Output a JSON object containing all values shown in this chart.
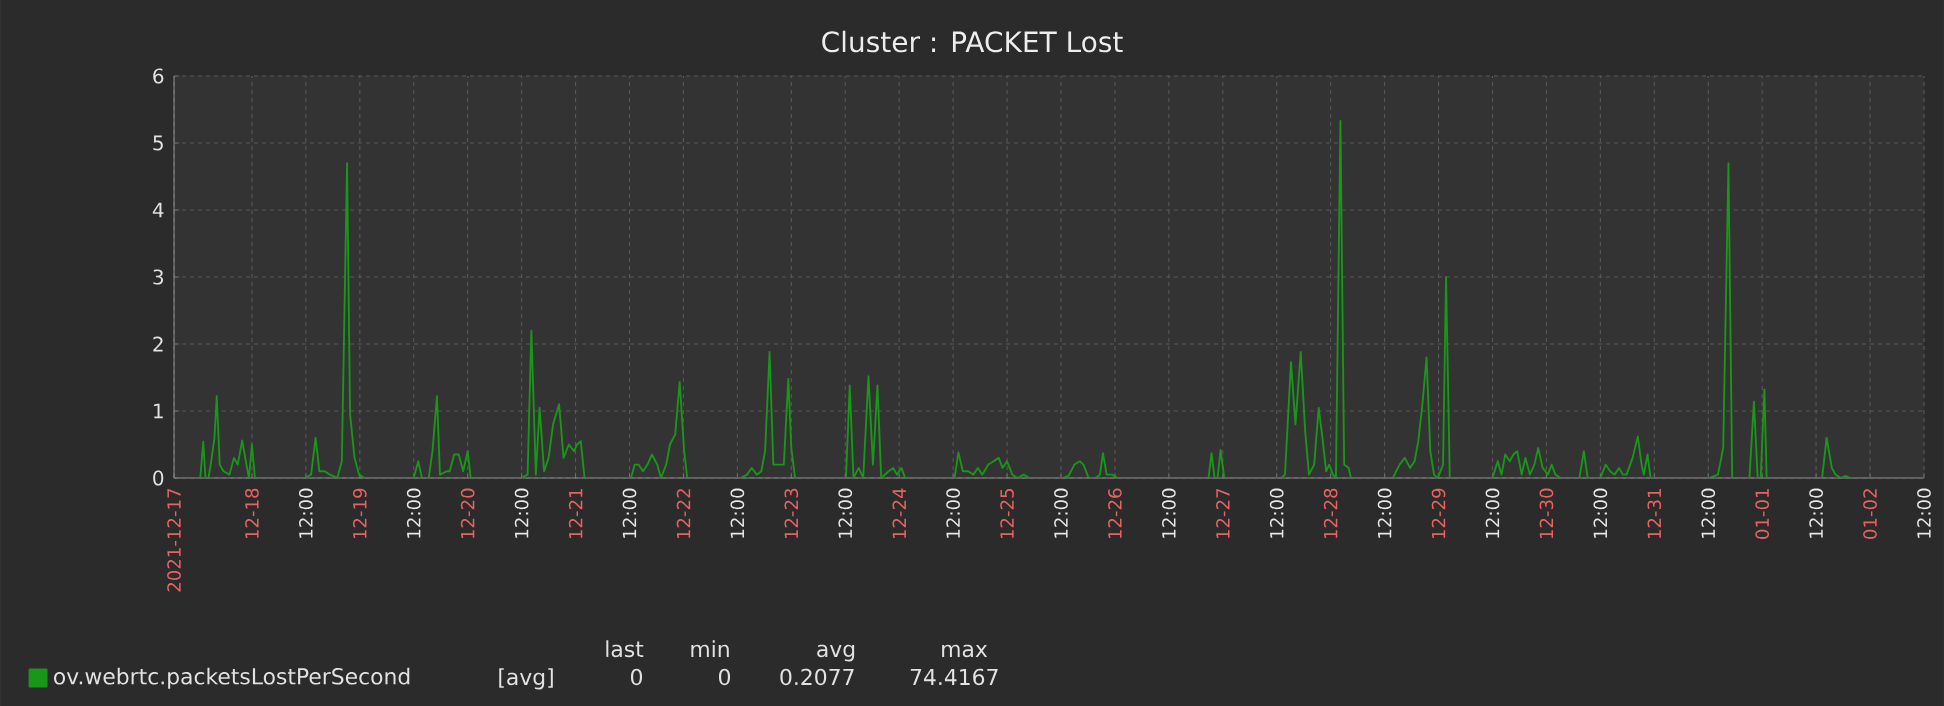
{
  "chart_data": {
    "type": "line",
    "title": "Cluster : PACKET Lost",
    "xlim": [
      "2021-12-17T06:40",
      "2022-01-02T12:00"
    ],
    "xticks": [
      {
        "value": "2021-12-17T06:40",
        "label": "2021-12-17"
      },
      {
        "value": "2021-12-18T00:00",
        "label": "12-18"
      },
      {
        "value": "2021-12-18T12:00",
        "label": "12:00"
      },
      {
        "value": "2021-12-19T00:00",
        "label": "12-19"
      },
      {
        "value": "2021-12-19T12:00",
        "label": "12:00"
      },
      {
        "value": "2021-12-20T00:00",
        "label": "12-20"
      },
      {
        "value": "2021-12-20T12:00",
        "label": "12:00"
      },
      {
        "value": "2021-12-21T00:00",
        "label": "12-21"
      },
      {
        "value": "2021-12-21T12:00",
        "label": "12:00"
      },
      {
        "value": "2021-12-22T00:00",
        "label": "12-22"
      },
      {
        "value": "2021-12-22T12:00",
        "label": "12:00"
      },
      {
        "value": "2021-12-23T00:00",
        "label": "12-23"
      },
      {
        "value": "2021-12-23T12:00",
        "label": "12:00"
      },
      {
        "value": "2021-12-24T00:00",
        "label": "12-24"
      },
      {
        "value": "2021-12-24T12:00",
        "label": "12:00"
      },
      {
        "value": "2021-12-25T00:00",
        "label": "12-25"
      },
      {
        "value": "2021-12-25T12:00",
        "label": "12:00"
      },
      {
        "value": "2021-12-26T00:00",
        "label": "12-26"
      },
      {
        "value": "2021-12-26T12:00",
        "label": "12:00"
      },
      {
        "value": "2021-12-27T00:00",
        "label": "12-27"
      },
      {
        "value": "2021-12-27T12:00",
        "label": "12:00"
      },
      {
        "value": "2021-12-28T00:00",
        "label": "12-28"
      },
      {
        "value": "2021-12-28T12:00",
        "label": "12:00"
      },
      {
        "value": "2021-12-29T00:00",
        "label": "12-29"
      },
      {
        "value": "2021-12-29T12:00",
        "label": "12:00"
      },
      {
        "value": "2021-12-30T00:00",
        "label": "12-30"
      },
      {
        "value": "2021-12-30T12:00",
        "label": "12:00"
      },
      {
        "value": "2021-12-31T00:00",
        "label": "12-31"
      },
      {
        "value": "2021-12-31T12:00",
        "label": "12:00"
      },
      {
        "value": "2022-01-01T00:00",
        "label": "01-01"
      },
      {
        "value": "2022-01-01T12:00",
        "label": "12:00"
      },
      {
        "value": "2022-01-02T00:00",
        "label": "01-02"
      },
      {
        "value": "2022-01-02T12:00",
        "label": "12:00"
      }
    ],
    "ylim": [
      0,
      6
    ],
    "yticks": [
      0,
      1,
      2,
      3,
      4,
      5,
      6
    ],
    "grid": true,
    "legend": "bottom",
    "annotations": [
      "[avg]",
      "last",
      "min",
      "avg",
      "max",
      "0",
      "0",
      "0.2077",
      "74.4167"
    ],
    "x": [
      "2021-12-17T07:10",
      "2021-12-17T12:30",
      "2021-12-17T13:10",
      "2021-12-17T13:40",
      "2021-12-17T14:20",
      "2021-12-17T14:50",
      "2021-12-17T15:40",
      "2021-12-17T16:10",
      "2021-12-17T16:50",
      "2021-12-17T17:40",
      "2021-12-17T19:00",
      "2021-12-17T20:00",
      "2021-12-17T20:50",
      "2021-12-17T21:50",
      "2021-12-17T22:30",
      "2021-12-17T23:20",
      "2021-12-18T00:00",
      "2021-12-18T00:40",
      "2021-12-18T01:30",
      "2021-12-18T11:40",
      "2021-12-18T13:10",
      "2021-12-18T14:10",
      "2021-12-18T15:00",
      "2021-12-18T16:10",
      "2021-12-18T17:20",
      "2021-12-18T19:00",
      "2021-12-18T20:00",
      "2021-12-18T21:10",
      "2021-12-18T21:50",
      "2021-12-18T22:50",
      "2021-12-18T23:50",
      "2021-12-19T01:00",
      "2021-12-19T12:00",
      "2021-12-19T13:00",
      "2021-12-19T13:50",
      "2021-12-19T15:20",
      "2021-12-19T16:10",
      "2021-12-19T17:10",
      "2021-12-19T17:50",
      "2021-12-19T19:20",
      "2021-12-19T20:00",
      "2021-12-19T21:00",
      "2021-12-19T22:00",
      "2021-12-19T23:00",
      "2021-12-20T00:00",
      "2021-12-20T00:40",
      "2021-12-20T11:50",
      "2021-12-20T13:20",
      "2021-12-20T14:10",
      "2021-12-20T15:10",
      "2021-12-20T16:00",
      "2021-12-20T17:00",
      "2021-12-20T18:00",
      "2021-12-20T19:00",
      "2021-12-20T20:20",
      "2021-12-20T21:20",
      "2021-12-20T22:30",
      "2021-12-20T23:40",
      "2021-12-21T00:20",
      "2021-12-21T01:10",
      "2021-12-21T02:00",
      "2021-12-21T12:20",
      "2021-12-21T13:10",
      "2021-12-21T14:00",
      "2021-12-21T15:00",
      "2021-12-21T16:00",
      "2021-12-21T17:00",
      "2021-12-21T18:10",
      "2021-12-21T19:00",
      "2021-12-21T20:10",
      "2021-12-21T21:00",
      "2021-12-21T22:10",
      "2021-12-21T23:10",
      "2021-12-22T00:10",
      "2021-12-22T00:50",
      "2021-12-22T12:40",
      "2021-12-22T14:10",
      "2021-12-22T15:10",
      "2021-12-22T16:20",
      "2021-12-22T17:20",
      "2021-12-22T18:10",
      "2021-12-22T19:10",
      "2021-12-22T20:00",
      "2021-12-22T21:30",
      "2021-12-22T22:20",
      "2021-12-22T23:20",
      "2021-12-23T00:00",
      "2021-12-23T00:50",
      "2021-12-23T12:10",
      "2021-12-23T13:00",
      "2021-12-23T13:50",
      "2021-12-23T15:00",
      "2021-12-23T16:00",
      "2021-12-23T17:10",
      "2021-12-23T18:10",
      "2021-12-23T19:10",
      "2021-12-23T20:00",
      "2021-12-23T21:40",
      "2021-12-23T22:40",
      "2021-12-23T23:30",
      "2021-12-24T00:30",
      "2021-12-24T01:20",
      "2021-12-24T12:20",
      "2021-12-24T13:10",
      "2021-12-24T14:10",
      "2021-12-24T15:20",
      "2021-12-24T16:30",
      "2021-12-24T17:30",
      "2021-12-24T18:30",
      "2021-12-24T19:50",
      "2021-12-24T21:00",
      "2021-12-24T22:10",
      "2021-12-24T23:00",
      "2021-12-25T00:00",
      "2021-12-25T01:10",
      "2021-12-25T02:20",
      "2021-12-25T03:40",
      "2021-12-25T05:00",
      "2021-12-25T12:30",
      "2021-12-25T13:40",
      "2021-12-25T15:00",
      "2021-12-25T16:10",
      "2021-12-25T17:00",
      "2021-12-25T18:10",
      "2021-12-25T19:40",
      "2021-12-25T20:40",
      "2021-12-25T21:20",
      "2021-12-25T22:10",
      "2021-12-25T23:20",
      "2021-12-26T00:40",
      "2021-12-26T20:50",
      "2021-12-26T21:30",
      "2021-12-26T22:10",
      "2021-12-26T22:50",
      "2021-12-26T23:30",
      "2021-12-27T00:20",
      "2021-12-27T13:00",
      "2021-12-27T13:50",
      "2021-12-27T15:10",
      "2021-12-27T16:10",
      "2021-12-27T17:20",
      "2021-12-27T18:20",
      "2021-12-27T19:10",
      "2021-12-27T20:20",
      "2021-12-27T21:20",
      "2021-12-27T22:10",
      "2021-12-27T23:00",
      "2021-12-27T23:40",
      "2021-12-28T00:30",
      "2021-12-28T01:10",
      "2021-12-28T02:10",
      "2021-12-28T03:00",
      "2021-12-28T04:00",
      "2021-12-28T04:30",
      "2021-12-28T13:50",
      "2021-12-28T15:20",
      "2021-12-28T16:30",
      "2021-12-28T17:40",
      "2021-12-28T18:40",
      "2021-12-28T19:30",
      "2021-12-28T20:20",
      "2021-12-28T21:20",
      "2021-12-28T22:10",
      "2021-12-28T23:00",
      "2021-12-28T23:50",
      "2021-12-29T01:00",
      "2021-12-29T01:40",
      "2021-12-29T02:30",
      "2021-12-29T12:00",
      "2021-12-29T13:10",
      "2021-12-29T14:00",
      "2021-12-29T14:50",
      "2021-12-29T15:50",
      "2021-12-29T16:40",
      "2021-12-29T17:30",
      "2021-12-29T18:30",
      "2021-12-29T19:20",
      "2021-12-29T20:20",
      "2021-12-29T21:20",
      "2021-12-29T22:10",
      "2021-12-29T23:10",
      "2021-12-30T00:20",
      "2021-12-30T01:10",
      "2021-12-30T02:00",
      "2021-12-30T03:10",
      "2021-12-30T07:20",
      "2021-12-30T08:20",
      "2021-12-30T09:10",
      "2021-12-30T12:00",
      "2021-12-30T13:10",
      "2021-12-30T14:10",
      "2021-12-30T15:10",
      "2021-12-30T16:10",
      "2021-12-30T17:00",
      "2021-12-30T17:50",
      "2021-12-30T19:10",
      "2021-12-30T20:20",
      "2021-12-30T21:10",
      "2021-12-30T21:40",
      "2021-12-30T22:30",
      "2021-12-30T23:10",
      "2021-12-31T12:20",
      "2021-12-31T14:10",
      "2021-12-31T15:20",
      "2021-12-31T16:30",
      "2021-12-31T17:20",
      "2021-12-31T21:10",
      "2021-12-31T22:10",
      "2021-12-31T23:00",
      "2021-12-31T23:40",
      "2022-01-01T00:30",
      "2022-01-01T01:00",
      "2022-01-01T13:20",
      "2022-01-01T14:20",
      "2022-01-01T15:30",
      "2022-01-01T16:20",
      "2022-01-01T17:30",
      "2022-01-01T18:40",
      "2022-01-01T19:30",
      "2022-01-02T12:00"
    ],
    "series": [
      {
        "name": "ov.webrtc.packetsLostPerSecond",
        "color": "#1a961a",
        "values": [
          0,
          0,
          0.54,
          0,
          0,
          0.2,
          0.6,
          1.22,
          0.2,
          0.1,
          0.05,
          0.3,
          0.2,
          0.56,
          0.3,
          0,
          0.5,
          0,
          0,
          0,
          0.05,
          0.6,
          0.1,
          0.1,
          0.05,
          0,
          0.25,
          4.7,
          0.95,
          0.3,
          0.05,
          0,
          0,
          0.25,
          0,
          0,
          0.4,
          1.22,
          0.05,
          0.1,
          0.1,
          0.35,
          0.35,
          0.1,
          0.4,
          0,
          0,
          0.05,
          2.2,
          0.05,
          1.05,
          0.1,
          0.3,
          0.8,
          1.1,
          0.3,
          0.5,
          0.4,
          0.5,
          0.55,
          0,
          0,
          0.2,
          0.2,
          0.1,
          0.2,
          0.35,
          0.2,
          0,
          0.2,
          0.5,
          0.65,
          1.43,
          0.4,
          0,
          0,
          0.05,
          0.15,
          0.05,
          0.1,
          0.4,
          1.88,
          0.2,
          0.2,
          0.2,
          1.48,
          0.45,
          0,
          0,
          1.38,
          0,
          0.15,
          0,
          1.52,
          0.2,
          1.38,
          0,
          0.1,
          0.15,
          0.05,
          0.15,
          0,
          0,
          0.38,
          0.1,
          0.1,
          0.05,
          0.15,
          0.05,
          0.2,
          0.25,
          0.3,
          0.15,
          0.25,
          0.05,
          0,
          0.05,
          0,
          0,
          0.03,
          0.2,
          0.25,
          0.2,
          0,
          0,
          0.05,
          0.37,
          0.05,
          0.05,
          0,
          0,
          0.37,
          0,
          0,
          0.42,
          0,
          0,
          0.05,
          1.73,
          0.8,
          1.88,
          0.7,
          0.05,
          0.2,
          1.05,
          0.6,
          0.1,
          0.2,
          0.05,
          0,
          5.33,
          0.2,
          0.15,
          0,
          0,
          0.2,
          0.3,
          0.15,
          0.25,
          0.55,
          1.05,
          1.8,
          0.4,
          0.05,
          0,
          0.2,
          3.0,
          0,
          0,
          0.25,
          0.05,
          0.35,
          0.25,
          0.35,
          0.4,
          0.05,
          0.3,
          0.05,
          0.2,
          0.45,
          0.15,
          0.05,
          0.2,
          0.05,
          0,
          0,
          0.4,
          0,
          0,
          0.2,
          0.1,
          0.05,
          0.15,
          0.05,
          0.05,
          0.3,
          0.62,
          0.2,
          0.05,
          0.35,
          0,
          0,
          0.05,
          0.45,
          4.7,
          0,
          0,
          1.14,
          0,
          0,
          1.32,
          0,
          0,
          0.6,
          0.15,
          0.05,
          0,
          0.03,
          0,
          0
        ]
      }
    ]
  }
}
